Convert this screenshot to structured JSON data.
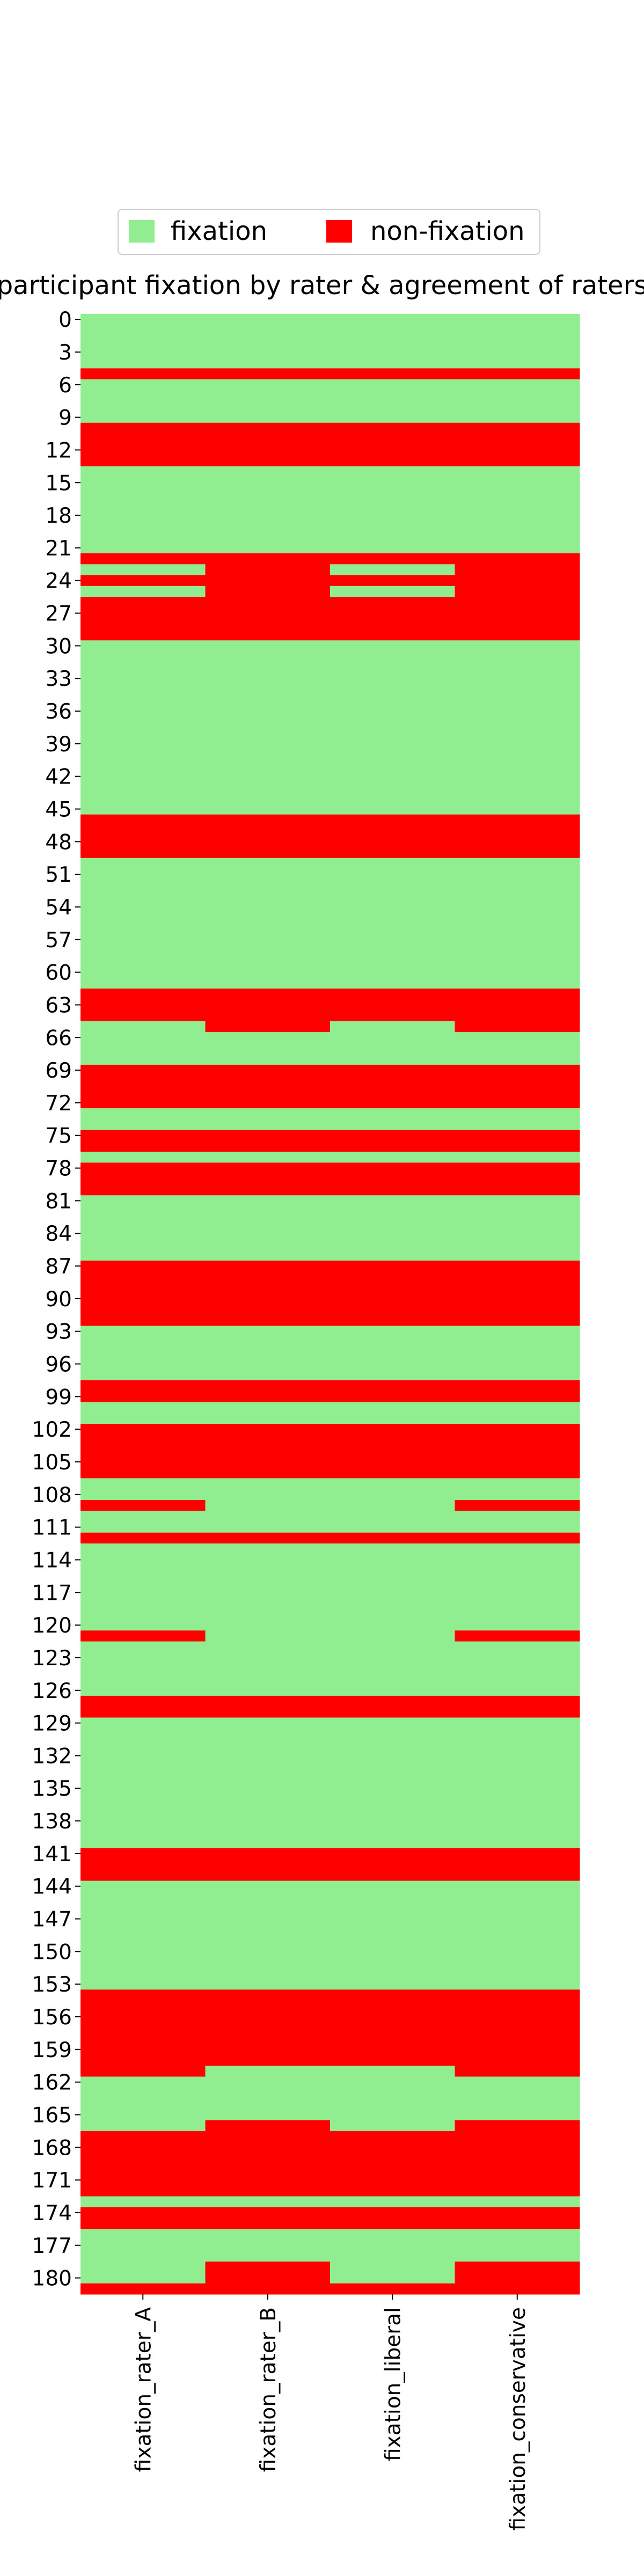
{
  "chart_data": {
    "type": "heatmap",
    "title": "participant fixation by rater & agreement of raters",
    "columns": [
      "fixation_rater_A",
      "fixation_rater_B",
      "fixation_liberal",
      "fixation_conservative"
    ],
    "n_rows": 182,
    "y_tick_labels": [
      "0",
      "3",
      "6",
      "9",
      "12",
      "15",
      "18",
      "21",
      "24",
      "27",
      "30",
      "33",
      "36",
      "39",
      "42",
      "45",
      "48",
      "51",
      "54",
      "57",
      "60",
      "63",
      "66",
      "69",
      "72",
      "75",
      "78",
      "81",
      "84",
      "87",
      "90",
      "93",
      "96",
      "99",
      "102",
      "105",
      "108",
      "111",
      "114",
      "117",
      "120",
      "123",
      "126",
      "129",
      "132",
      "135",
      "138",
      "141",
      "144",
      "147",
      "150",
      "153",
      "156",
      "159",
      "162",
      "165",
      "168",
      "171",
      "174",
      "177",
      "180"
    ],
    "legend": {
      "position": "top-center",
      "entries": [
        {
          "label": "fixation",
          "color": "#90ee90"
        },
        {
          "label": "non-fixation",
          "color": "#ff0000"
        }
      ]
    },
    "colors": {
      "fixation": "#90ee90",
      "non_fixation": "#ff0000"
    },
    "non_fixation_ranges": {
      "fixation_rater_A": [
        [
          5,
          5
        ],
        [
          10,
          13
        ],
        [
          22,
          22
        ],
        [
          24,
          24
        ],
        [
          26,
          29
        ],
        [
          46,
          49
        ],
        [
          62,
          64
        ],
        [
          69,
          72
        ],
        [
          75,
          76
        ],
        [
          78,
          80
        ],
        [
          87,
          92
        ],
        [
          98,
          99
        ],
        [
          102,
          106
        ],
        [
          109,
          109
        ],
        [
          112,
          112
        ],
        [
          121,
          121
        ],
        [
          127,
          128
        ],
        [
          141,
          143
        ],
        [
          154,
          161
        ],
        [
          167,
          172
        ],
        [
          174,
          175
        ],
        [
          181,
          183
        ]
      ],
      "fixation_rater_B": [
        [
          5,
          5
        ],
        [
          10,
          13
        ],
        [
          22,
          25
        ],
        [
          26,
          29
        ],
        [
          46,
          49
        ],
        [
          62,
          65
        ],
        [
          69,
          72
        ],
        [
          75,
          76
        ],
        [
          78,
          80
        ],
        [
          87,
          92
        ],
        [
          98,
          99
        ],
        [
          102,
          106
        ],
        [
          112,
          112
        ],
        [
          127,
          128
        ],
        [
          141,
          143
        ],
        [
          154,
          160
        ],
        [
          166,
          172
        ],
        [
          174,
          175
        ],
        [
          179,
          183
        ]
      ],
      "fixation_liberal": [
        [
          5,
          5
        ],
        [
          10,
          13
        ],
        [
          22,
          22
        ],
        [
          24,
          24
        ],
        [
          26,
          29
        ],
        [
          46,
          49
        ],
        [
          62,
          64
        ],
        [
          69,
          72
        ],
        [
          75,
          76
        ],
        [
          78,
          80
        ],
        [
          87,
          92
        ],
        [
          98,
          99
        ],
        [
          102,
          106
        ],
        [
          112,
          112
        ],
        [
          127,
          128
        ],
        [
          141,
          143
        ],
        [
          154,
          160
        ],
        [
          167,
          172
        ],
        [
          174,
          175
        ],
        [
          181,
          183
        ]
      ],
      "fixation_conservative": [
        [
          5,
          5
        ],
        [
          10,
          13
        ],
        [
          22,
          25
        ],
        [
          26,
          29
        ],
        [
          46,
          49
        ],
        [
          62,
          65
        ],
        [
          69,
          72
        ],
        [
          75,
          76
        ],
        [
          78,
          80
        ],
        [
          87,
          92
        ],
        [
          98,
          99
        ],
        [
          102,
          106
        ],
        [
          109,
          109
        ],
        [
          112,
          112
        ],
        [
          121,
          121
        ],
        [
          127,
          128
        ],
        [
          141,
          143
        ],
        [
          154,
          161
        ],
        [
          166,
          172
        ],
        [
          174,
          175
        ],
        [
          179,
          183
        ]
      ]
    }
  }
}
